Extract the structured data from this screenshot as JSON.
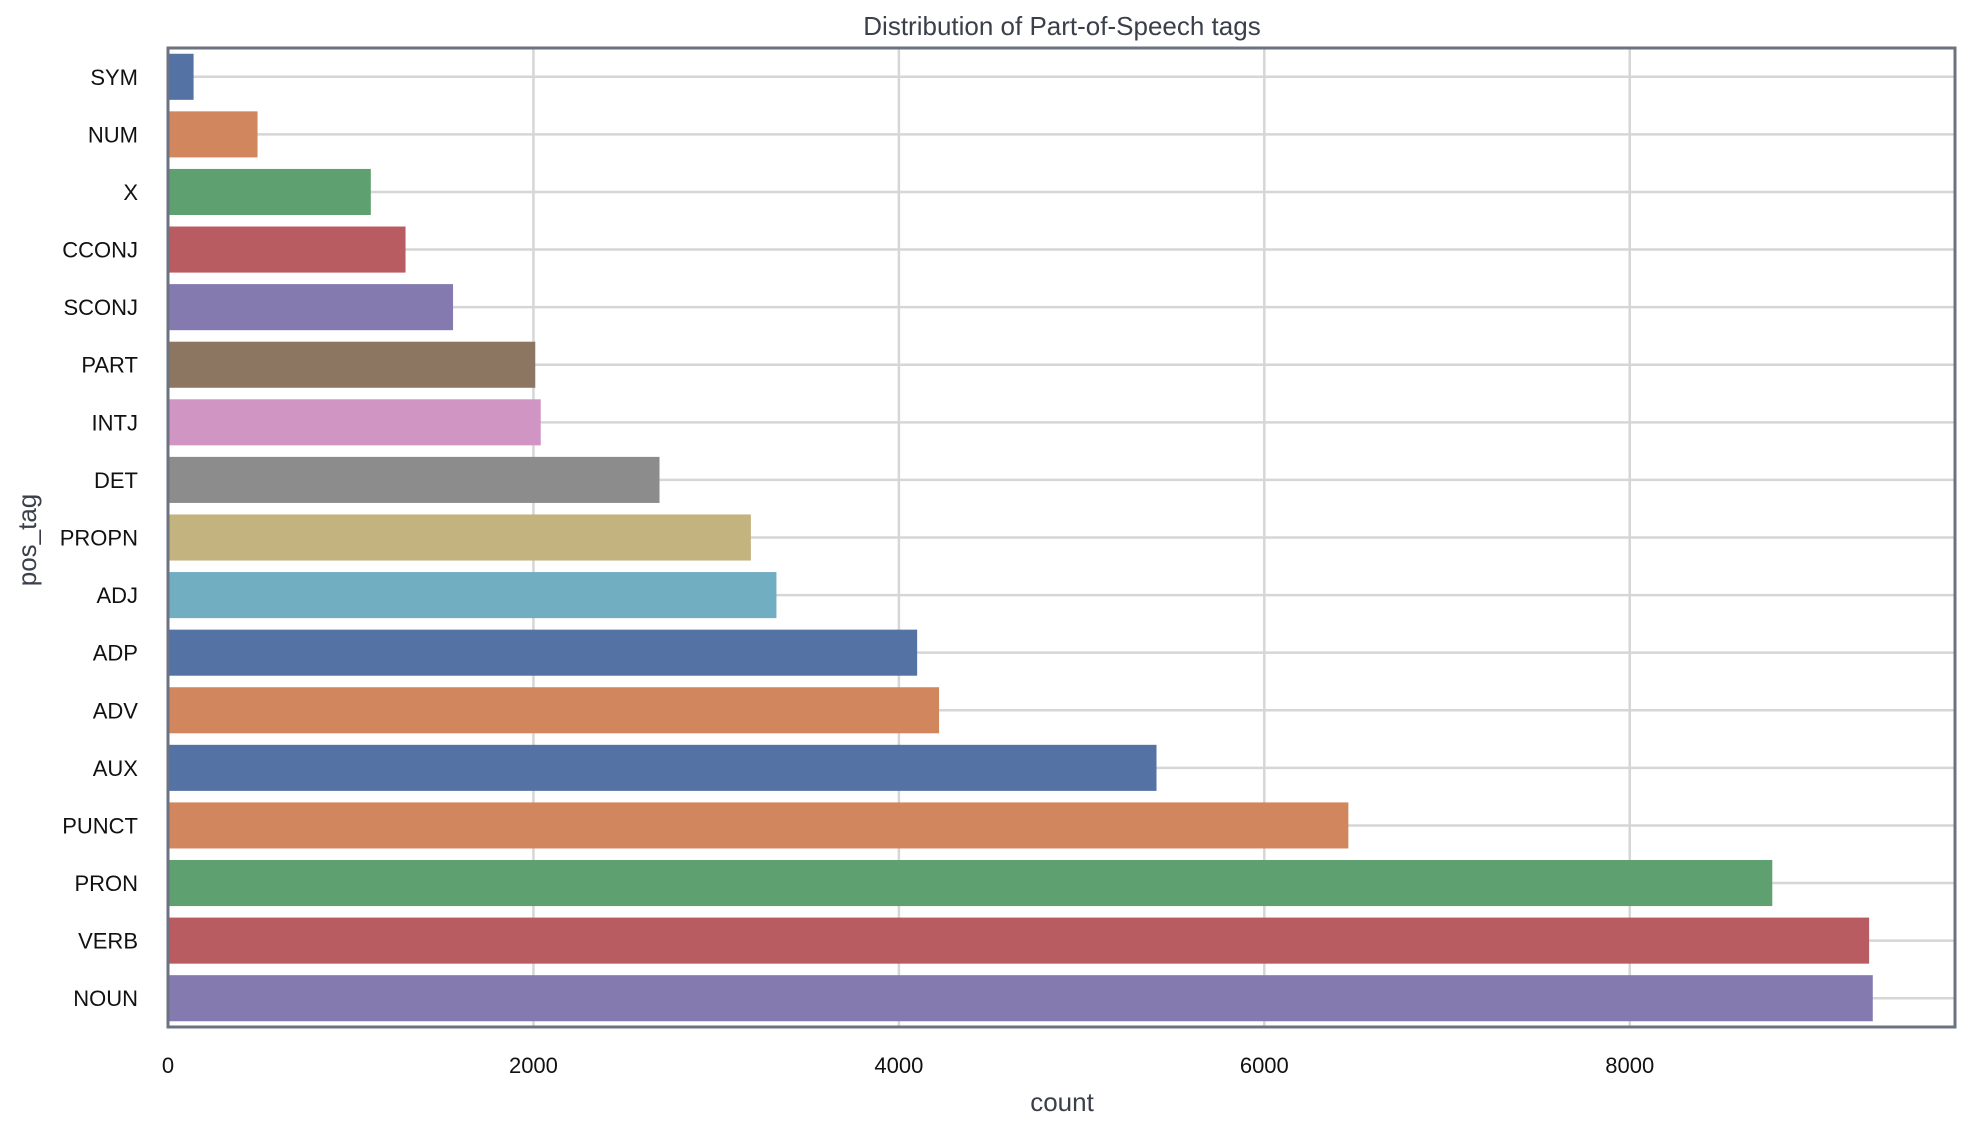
{
  "chart_data": {
    "type": "bar",
    "orientation": "horizontal",
    "title": "Distribution of Part-of-Speech tags",
    "xlabel": "count",
    "ylabel": "pos_tag",
    "xlim": [
      0,
      9780
    ],
    "xticks": [
      0,
      2000,
      4000,
      6000,
      8000
    ],
    "grid": true,
    "categories": [
      "SYM",
      "NUM",
      "X",
      "CCONJ",
      "SCONJ",
      "PART",
      "INTJ",
      "DET",
      "PROPN",
      "ADJ",
      "ADP",
      "ADV",
      "AUX",
      "PUNCT",
      "PRON",
      "VERB",
      "NOUN"
    ],
    "values": [
      140,
      490,
      1110,
      1300,
      1560,
      2010,
      2040,
      2690,
      3190,
      3330,
      4100,
      4220,
      5410,
      6460,
      8780,
      9310,
      9330
    ],
    "colors": [
      "#5572a4",
      "#d2865e",
      "#5ea06f",
      "#b85c62",
      "#857ab0",
      "#8c7662",
      "#d095c3",
      "#8c8c8c",
      "#c2b37f",
      "#72aec1",
      "#5572a4",
      "#d2865e",
      "#5572a4",
      "#d2865e",
      "#5ea06f",
      "#b85c62",
      "#857ab0"
    ]
  }
}
